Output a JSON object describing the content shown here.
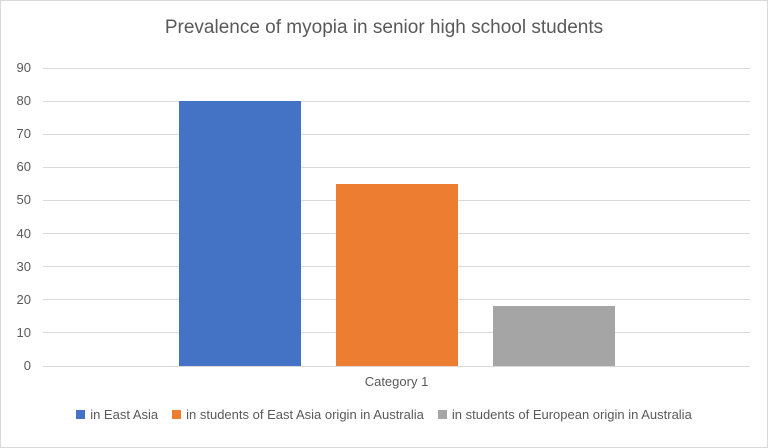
{
  "chart_data": {
    "type": "bar",
    "title": "Prevalence of myopia in senior high school students",
    "categories": [
      "Category 1"
    ],
    "series": [
      {
        "name": "in East Asia",
        "values": [
          80
        ],
        "color": "#4472C4"
      },
      {
        "name": "in students of East Asia origin in Australia",
        "values": [
          55
        ],
        "color": "#ED7D31"
      },
      {
        "name": "in students of European origin in Australia",
        "values": [
          18
        ],
        "color": "#A5A5A5"
      }
    ],
    "xlabel": "",
    "ylabel": "",
    "ylim": [
      0,
      90
    ],
    "ytick_step": 10,
    "grid": true,
    "legend_position": "bottom",
    "colors": {
      "grid": "#D9D9D9",
      "axis_text": "#595959",
      "title_text": "#595959",
      "border": "#D9D9D9"
    }
  }
}
